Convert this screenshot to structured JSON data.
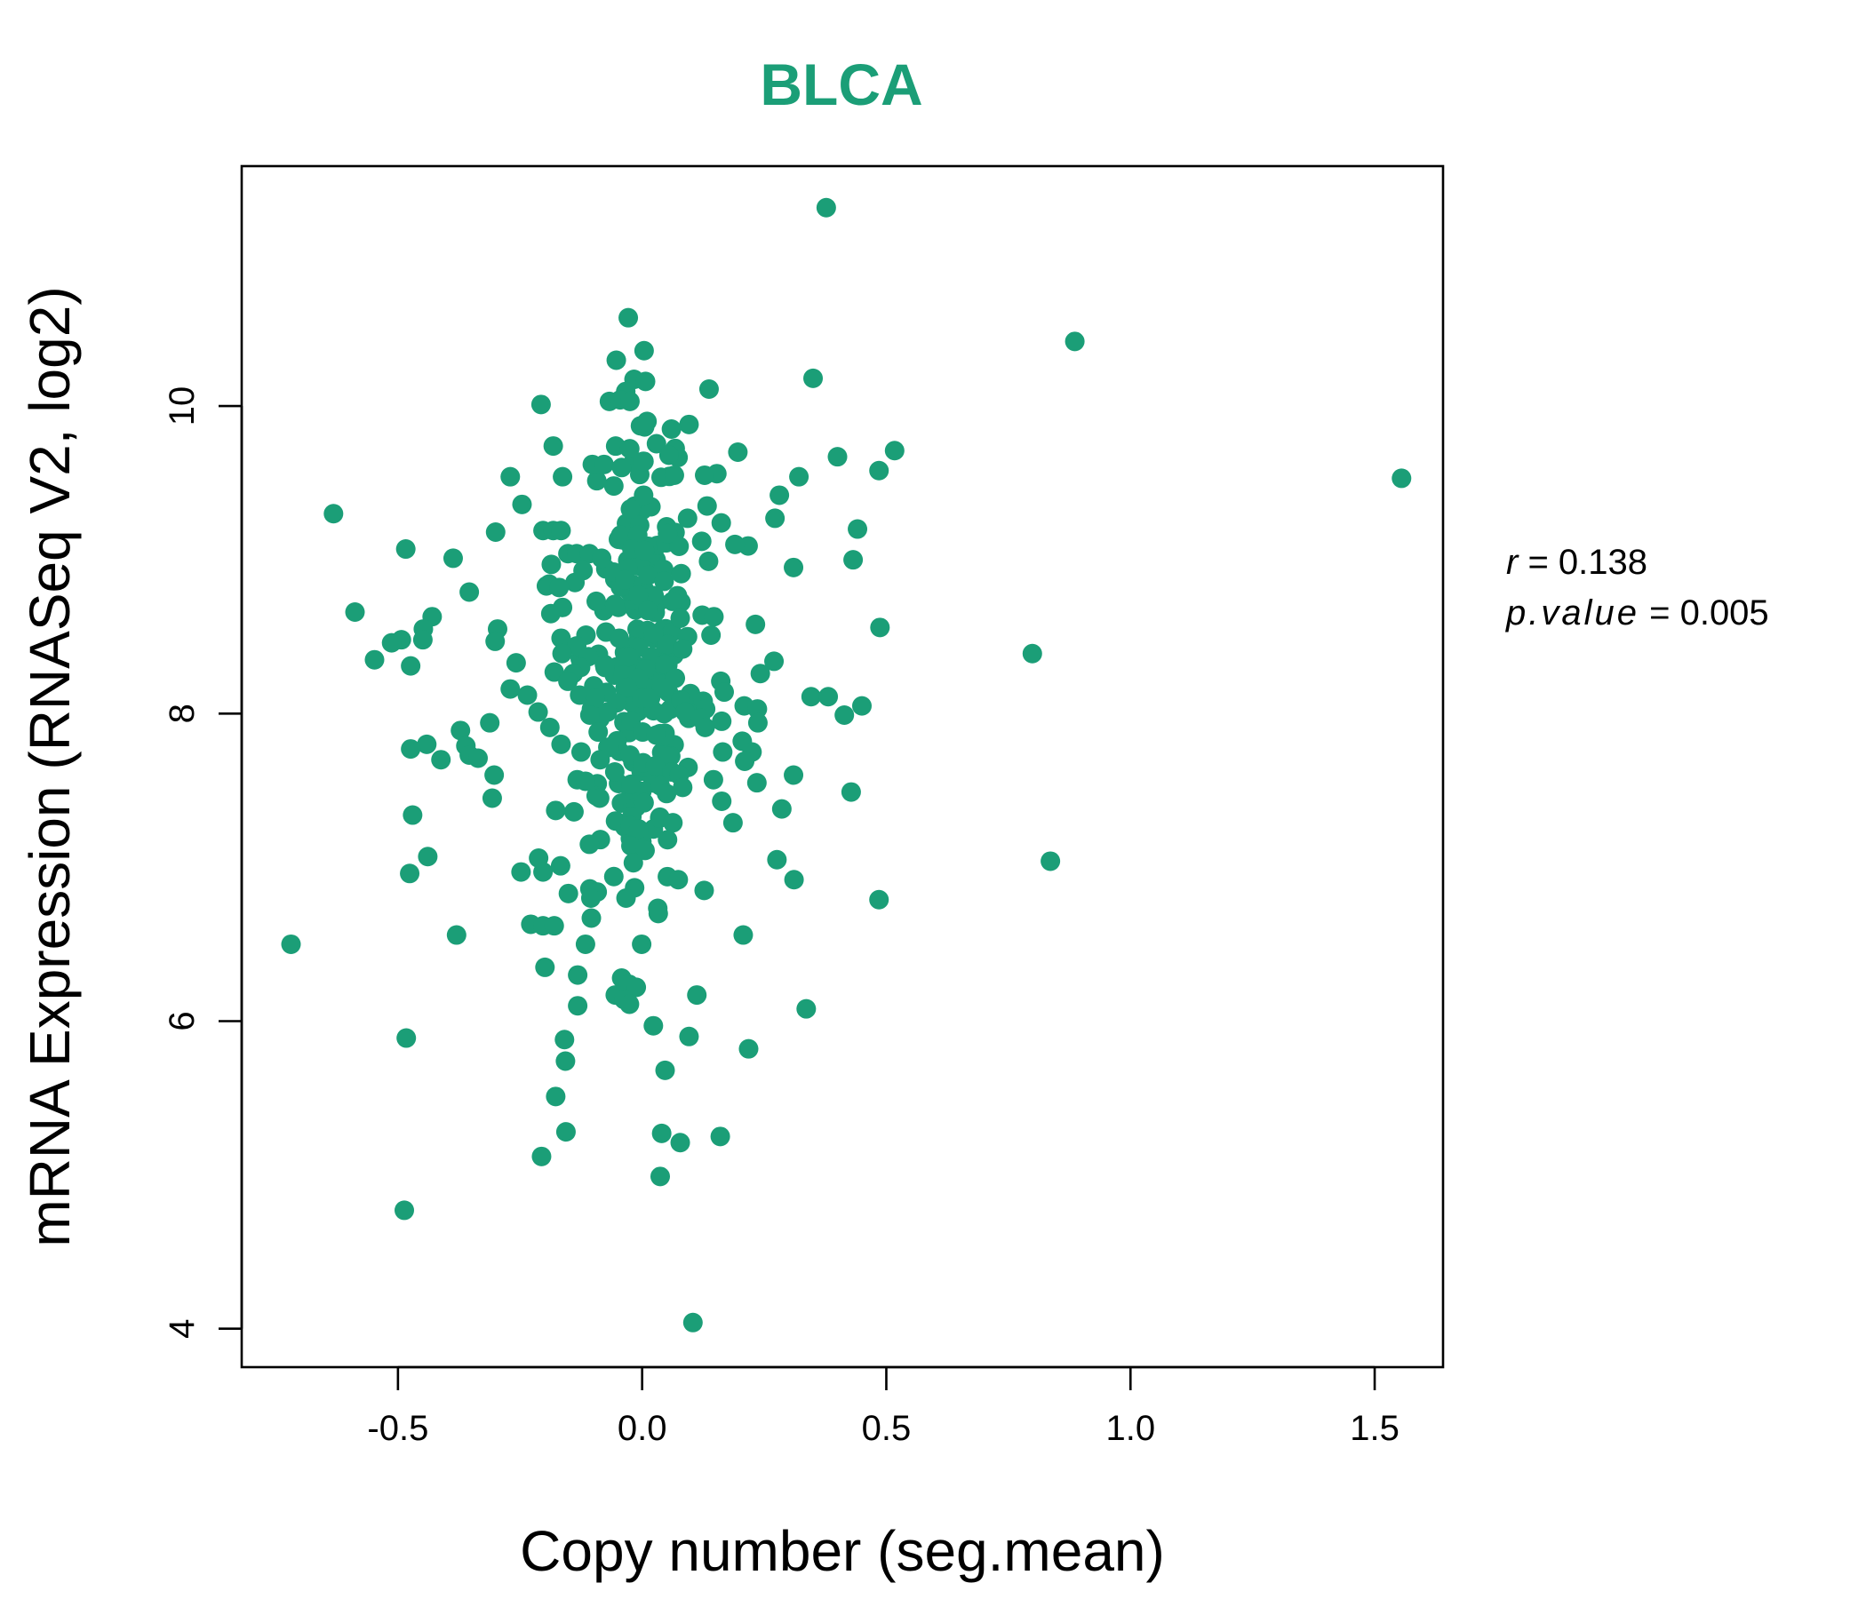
{
  "chart_data": {
    "type": "scatter",
    "title": "BLCA",
    "xlabel": "Copy number (seg.mean)",
    "ylabel": "mRNA Expression (RNASeq V2, log2)",
    "xlim": [
      -0.82,
      1.64
    ],
    "ylim": [
      3.75,
      11.56
    ],
    "xticks": [
      {
        "value": -0.5,
        "label": "-0.5"
      },
      {
        "value": 0.0,
        "label": "0.0"
      },
      {
        "value": 0.5,
        "label": "0.5"
      },
      {
        "value": 1.0,
        "label": "1.0"
      },
      {
        "value": 1.5,
        "label": "1.5"
      }
    ],
    "yticks": [
      {
        "value": 4,
        "label": "4"
      },
      {
        "value": 6,
        "label": "6"
      },
      {
        "value": 8,
        "label": "8"
      },
      {
        "value": 10,
        "label": "10"
      }
    ],
    "grid": false,
    "legend": "none",
    "point_color": "#1b9e77",
    "annotation": {
      "r_name": "r",
      "r_value": "0.138",
      "p_name": "p.value",
      "p_value": "0.005"
    },
    "points": [
      {
        "x": 0.377,
        "y": 11.29
      },
      {
        "x": 0.886,
        "y": 10.42
      },
      {
        "x": 0.004,
        "y": 10.36
      },
      {
        "x": 1.555,
        "y": 9.53
      },
      {
        "x": 0.35,
        "y": 10.18
      },
      {
        "x": 0.137,
        "y": 10.11
      },
      {
        "x": 0.007,
        "y": 10.16
      },
      {
        "x": -0.067,
        "y": 10.03
      },
      {
        "x": -0.045,
        "y": 10.04
      },
      {
        "x": -0.025,
        "y": 10.03
      },
      {
        "x": -0.207,
        "y": 10.01
      },
      {
        "x": 0.096,
        "y": 9.88
      },
      {
        "x": 0.06,
        "y": 9.85
      },
      {
        "x": 0.01,
        "y": 9.9
      },
      {
        "x": -0.182,
        "y": 9.74
      },
      {
        "x": 0.517,
        "y": 9.71
      },
      {
        "x": 0.4,
        "y": 9.67
      },
      {
        "x": 0.196,
        "y": 9.7
      },
      {
        "x": 0.055,
        "y": 9.68
      },
      {
        "x": -0.102,
        "y": 9.62
      },
      {
        "x": -0.078,
        "y": 9.62
      },
      {
        "x": -0.042,
        "y": 9.6
      },
      {
        "x": 0.002,
        "y": 9.64
      },
      {
        "x": 0.485,
        "y": 9.58
      },
      {
        "x": 0.321,
        "y": 9.54
      },
      {
        "x": 0.153,
        "y": 9.56
      },
      {
        "x": 0.128,
        "y": 9.55
      },
      {
        "x": 0.066,
        "y": 9.55
      },
      {
        "x": -0.27,
        "y": 9.54
      },
      {
        "x": -0.163,
        "y": 9.54
      },
      {
        "x": -0.058,
        "y": 9.48
      },
      {
        "x": 0.003,
        "y": 9.42
      },
      {
        "x": 0.281,
        "y": 9.42
      },
      {
        "x": -0.246,
        "y": 9.36
      },
      {
        "x": 0.133,
        "y": 9.35
      },
      {
        "x": -0.024,
        "y": 9.33
      },
      {
        "x": -0.632,
        "y": 9.3
      },
      {
        "x": 0.272,
        "y": 9.27
      },
      {
        "x": 0.093,
        "y": 9.27
      },
      {
        "x": 0.162,
        "y": 9.24
      },
      {
        "x": 0.441,
        "y": 9.2
      },
      {
        "x": -0.3,
        "y": 9.18
      },
      {
        "x": -0.203,
        "y": 9.19
      },
      {
        "x": -0.182,
        "y": 9.19
      },
      {
        "x": -0.166,
        "y": 9.19
      },
      {
        "x": -0.044,
        "y": 9.16
      },
      {
        "x": -0.009,
        "y": 9.16
      },
      {
        "x": 0.052,
        "y": 9.17
      },
      {
        "x": 0.122,
        "y": 9.12
      },
      {
        "x": 0.217,
        "y": 9.09
      },
      {
        "x": 0.19,
        "y": 9.1
      },
      {
        "x": -0.484,
        "y": 9.07
      },
      {
        "x": -0.021,
        "y": 9.07
      },
      {
        "x": 0.005,
        "y": 9.06
      },
      {
        "x": -0.152,
        "y": 9.04
      },
      {
        "x": -0.134,
        "y": 9.04
      },
      {
        "x": -0.108,
        "y": 9.04
      },
      {
        "x": -0.083,
        "y": 9.01
      },
      {
        "x": -0.387,
        "y": 9.01
      },
      {
        "x": 0.432,
        "y": 9.0
      },
      {
        "x": 0.136,
        "y": 8.99
      },
      {
        "x": -0.186,
        "y": 8.97
      },
      {
        "x": 0.31,
        "y": 8.95
      },
      {
        "x": -0.121,
        "y": 8.93
      },
      {
        "x": -0.058,
        "y": 8.92
      },
      {
        "x": 0.08,
        "y": 8.91
      },
      {
        "x": 0.013,
        "y": 8.9
      },
      {
        "x": -0.035,
        "y": 8.87
      },
      {
        "x": 0.045,
        "y": 8.86
      },
      {
        "x": -0.196,
        "y": 8.83
      },
      {
        "x": -0.17,
        "y": 8.82
      },
      {
        "x": -0.354,
        "y": 8.79
      },
      {
        "x": -0.008,
        "y": 8.77
      },
      {
        "x": 0.062,
        "y": 8.73
      },
      {
        "x": -0.094,
        "y": 8.73
      },
      {
        "x": -0.056,
        "y": 8.71
      },
      {
        "x": -0.163,
        "y": 8.69
      },
      {
        "x": 0.012,
        "y": 8.67
      },
      {
        "x": -0.187,
        "y": 8.65
      },
      {
        "x": -0.588,
        "y": 8.66
      },
      {
        "x": 0.123,
        "y": 8.64
      },
      {
        "x": 0.147,
        "y": 8.63
      },
      {
        "x": 0.078,
        "y": 8.62
      },
      {
        "x": -0.43,
        "y": 8.63
      },
      {
        "x": 0.232,
        "y": 8.58
      },
      {
        "x": 0.487,
        "y": 8.56
      },
      {
        "x": -0.448,
        "y": 8.55
      },
      {
        "x": -0.296,
        "y": 8.55
      },
      {
        "x": 0.141,
        "y": 8.51
      },
      {
        "x": -0.115,
        "y": 8.51
      },
      {
        "x": -0.074,
        "y": 8.53
      },
      {
        "x": 0.024,
        "y": 8.52
      },
      {
        "x": 0.093,
        "y": 8.5
      },
      {
        "x": -0.166,
        "y": 8.49
      },
      {
        "x": -0.047,
        "y": 8.49
      },
      {
        "x": -0.493,
        "y": 8.48
      },
      {
        "x": -0.513,
        "y": 8.46
      },
      {
        "x": -0.449,
        "y": 8.48
      },
      {
        "x": -0.301,
        "y": 8.47
      },
      {
        "x": 0.052,
        "y": 8.45
      },
      {
        "x": -0.134,
        "y": 8.44
      },
      {
        "x": -0.007,
        "y": 8.43
      },
      {
        "x": 0.083,
        "y": 8.42
      },
      {
        "x": -0.164,
        "y": 8.39
      },
      {
        "x": 0.799,
        "y": 8.39
      },
      {
        "x": -0.11,
        "y": 8.37
      },
      {
        "x": -0.028,
        "y": 8.37
      },
      {
        "x": -0.548,
        "y": 8.35
      },
      {
        "x": 0.27,
        "y": 8.34
      },
      {
        "x": -0.258,
        "y": 8.33
      },
      {
        "x": -0.474,
        "y": 8.31
      },
      {
        "x": 0.046,
        "y": 8.32
      },
      {
        "x": -0.126,
        "y": 8.3
      },
      {
        "x": -0.076,
        "y": 8.3
      },
      {
        "x": 0.007,
        "y": 8.29
      },
      {
        "x": -0.18,
        "y": 8.27
      },
      {
        "x": -0.141,
        "y": 8.26
      },
      {
        "x": 0.242,
        "y": 8.26
      },
      {
        "x": -0.039,
        "y": 8.25
      },
      {
        "x": -0.008,
        "y": 8.23
      },
      {
        "x": 0.068,
        "y": 8.23
      },
      {
        "x": -0.152,
        "y": 8.21
      },
      {
        "x": 0.161,
        "y": 8.21
      },
      {
        "x": -0.099,
        "y": 8.18
      },
      {
        "x": -0.03,
        "y": 8.17
      },
      {
        "x": 0.04,
        "y": 8.17
      },
      {
        "x": -0.27,
        "y": 8.16
      },
      {
        "x": 0.168,
        "y": 8.14
      },
      {
        "x": 0.099,
        "y": 8.13
      },
      {
        "x": -0.128,
        "y": 8.12
      },
      {
        "x": -0.235,
        "y": 8.12
      },
      {
        "x": 0.346,
        "y": 8.11
      },
      {
        "x": 0.381,
        "y": 8.11
      },
      {
        "x": 0.012,
        "y": 8.1
      },
      {
        "x": -0.096,
        "y": 8.1
      },
      {
        "x": 0.079,
        "y": 8.09
      },
      {
        "x": 0.125,
        "y": 8.08
      },
      {
        "x": -0.052,
        "y": 8.07
      },
      {
        "x": 0.209,
        "y": 8.05
      },
      {
        "x": 0.45,
        "y": 8.05
      },
      {
        "x": 0.13,
        "y": 8.03
      },
      {
        "x": 0.236,
        "y": 8.03
      },
      {
        "x": -0.213,
        "y": 8.01
      },
      {
        "x": -0.071,
        "y": 8.01
      },
      {
        "x": 0.088,
        "y": 8.01
      },
      {
        "x": 0.045,
        "y": 8.0
      },
      {
        "x": -0.107,
        "y": 7.99
      },
      {
        "x": 0.414,
        "y": 7.99
      },
      {
        "x": 0.119,
        "y": 7.97
      },
      {
        "x": -0.023,
        "y": 7.95
      },
      {
        "x": 0.163,
        "y": 7.95
      },
      {
        "x": -0.312,
        "y": 7.94
      },
      {
        "x": 0.237,
        "y": 7.94
      },
      {
        "x": -0.189,
        "y": 7.91
      },
      {
        "x": 0.129,
        "y": 7.91
      },
      {
        "x": -0.372,
        "y": 7.89
      },
      {
        "x": -0.09,
        "y": 7.88
      },
      {
        "x": 0.001,
        "y": 7.88
      },
      {
        "x": 0.029,
        "y": 7.86
      },
      {
        "x": 0.205,
        "y": 7.82
      },
      {
        "x": -0.166,
        "y": 7.8
      },
      {
        "x": -0.441,
        "y": 7.8
      },
      {
        "x": -0.361,
        "y": 7.79
      },
      {
        "x": -0.067,
        "y": 7.78
      },
      {
        "x": -0.474,
        "y": 7.77
      },
      {
        "x": -0.125,
        "y": 7.75
      },
      {
        "x": 0.165,
        "y": 7.75
      },
      {
        "x": 0.225,
        "y": 7.75
      },
      {
        "x": -0.354,
        "y": 7.73
      },
      {
        "x": -0.025,
        "y": 7.73
      },
      {
        "x": 0.053,
        "y": 7.72
      },
      {
        "x": -0.412,
        "y": 7.7
      },
      {
        "x": -0.336,
        "y": 7.71
      },
      {
        "x": -0.086,
        "y": 7.7
      },
      {
        "x": 0.21,
        "y": 7.69
      },
      {
        "x": 0.002,
        "y": 7.68
      },
      {
        "x": 0.027,
        "y": 7.66
      },
      {
        "x": 0.094,
        "y": 7.65
      },
      {
        "x": -0.056,
        "y": 7.62
      },
      {
        "x": 0.061,
        "y": 7.62
      },
      {
        "x": -0.303,
        "y": 7.6
      },
      {
        "x": 0.076,
        "y": 7.6
      },
      {
        "x": 0.31,
        "y": 7.6
      },
      {
        "x": -0.133,
        "y": 7.57
      },
      {
        "x": 0.146,
        "y": 7.57
      },
      {
        "x": -0.116,
        "y": 7.56
      },
      {
        "x": 0.235,
        "y": 7.55
      },
      {
        "x": -0.023,
        "y": 7.54
      },
      {
        "x": 0.037,
        "y": 7.53
      },
      {
        "x": 0.083,
        "y": 7.52
      },
      {
        "x": 0.428,
        "y": 7.49
      },
      {
        "x": 0.05,
        "y": 7.48
      },
      {
        "x": -0.307,
        "y": 7.45
      },
      {
        "x": -0.087,
        "y": 7.45
      },
      {
        "x": 0.163,
        "y": 7.43
      },
      {
        "x": 0.004,
        "y": 7.42
      },
      {
        "x": 0.286,
        "y": 7.38
      },
      {
        "x": -0.177,
        "y": 7.37
      },
      {
        "x": -0.47,
        "y": 7.34
      },
      {
        "x": -0.021,
        "y": 7.33
      },
      {
        "x": 0.036,
        "y": 7.32
      },
      {
        "x": 0.186,
        "y": 7.29
      },
      {
        "x": 0.063,
        "y": 7.29
      },
      {
        "x": -0.024,
        "y": 7.27
      },
      {
        "x": -0.007,
        "y": 7.25
      },
      {
        "x": 0.052,
        "y": 7.18
      },
      {
        "x": -0.108,
        "y": 7.15
      },
      {
        "x": -0.023,
        "y": 7.14
      },
      {
        "x": 0.006,
        "y": 7.11
      },
      {
        "x": -0.439,
        "y": 7.07
      },
      {
        "x": -0.212,
        "y": 7.06
      },
      {
        "x": 0.276,
        "y": 7.05
      },
      {
        "x": 0.836,
        "y": 7.04
      },
      {
        "x": -0.018,
        "y": 7.03
      },
      {
        "x": -0.167,
        "y": 7.01
      },
      {
        "x": -0.248,
        "y": 6.97
      },
      {
        "x": -0.203,
        "y": 6.97
      },
      {
        "x": -0.476,
        "y": 6.96
      },
      {
        "x": -0.058,
        "y": 6.94
      },
      {
        "x": 0.074,
        "y": 6.92
      },
      {
        "x": 0.311,
        "y": 6.92
      },
      {
        "x": -0.107,
        "y": 6.86
      },
      {
        "x": 0.127,
        "y": 6.85
      },
      {
        "x": -0.092,
        "y": 6.84
      },
      {
        "x": -0.151,
        "y": 6.83
      },
      {
        "x": -0.105,
        "y": 6.8
      },
      {
        "x": -0.033,
        "y": 6.8
      },
      {
        "x": 0.485,
        "y": 6.79
      },
      {
        "x": 0.033,
        "y": 6.7
      },
      {
        "x": -0.104,
        "y": 6.67
      },
      {
        "x": -0.228,
        "y": 6.63
      },
      {
        "x": -0.203,
        "y": 6.62
      },
      {
        "x": -0.18,
        "y": 6.62
      },
      {
        "x": -0.38,
        "y": 6.56
      },
      {
        "x": 0.207,
        "y": 6.56
      },
      {
        "x": -0.719,
        "y": 6.5
      },
      {
        "x": -0.116,
        "y": 6.5
      },
      {
        "x": -0.001,
        "y": 6.5
      },
      {
        "x": -0.199,
        "y": 6.35
      },
      {
        "x": -0.132,
        "y": 6.3
      },
      {
        "x": -0.042,
        "y": 6.28
      },
      {
        "x": -0.027,
        "y": 6.24
      },
      {
        "x": -0.012,
        "y": 6.22
      },
      {
        "x": -0.055,
        "y": 6.17
      },
      {
        "x": 0.112,
        "y": 6.17
      },
      {
        "x": -0.037,
        "y": 6.14
      },
      {
        "x": -0.026,
        "y": 6.11
      },
      {
        "x": -0.132,
        "y": 6.1
      },
      {
        "x": 0.336,
        "y": 6.08
      },
      {
        "x": 0.023,
        "y": 5.97
      },
      {
        "x": -0.483,
        "y": 5.89
      },
      {
        "x": 0.096,
        "y": 5.9
      },
      {
        "x": -0.159,
        "y": 5.88
      },
      {
        "x": 0.218,
        "y": 5.82
      },
      {
        "x": -0.157,
        "y": 5.74
      },
      {
        "x": 0.047,
        "y": 5.68
      },
      {
        "x": -0.177,
        "y": 5.51
      },
      {
        "x": -0.156,
        "y": 5.28
      },
      {
        "x": 0.04,
        "y": 5.27
      },
      {
        "x": 0.16,
        "y": 5.25
      },
      {
        "x": 0.078,
        "y": 5.21
      },
      {
        "x": -0.206,
        "y": 5.12
      },
      {
        "x": 0.037,
        "y": 4.99
      },
      {
        "x": -0.487,
        "y": 4.77
      },
      {
        "x": 0.104,
        "y": 4.04
      }
    ],
    "dense_clusters": [
      {
        "cx": 0.0,
        "cy": 8.45,
        "sx": 0.045,
        "sy": 0.85,
        "n": 110
      },
      {
        "cx": -0.03,
        "cy": 8.2,
        "sx": 0.07,
        "sy": 0.6,
        "n": 40
      }
    ]
  }
}
